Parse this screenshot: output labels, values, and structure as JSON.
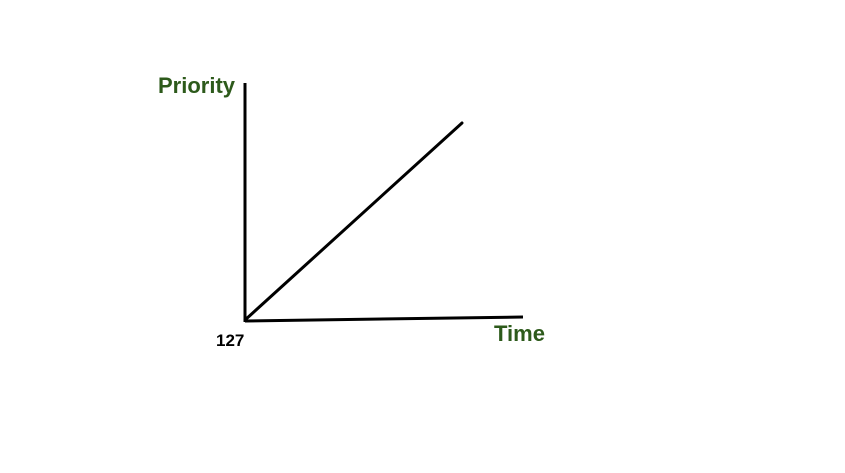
{
  "chart_data": {
    "type": "line",
    "xlabel": "Time",
    "ylabel": "Priority",
    "y_tick_labels": [
      "127"
    ],
    "series": [
      {
        "points": [
          [
            0,
            0
          ],
          [
            1,
            1
          ]
        ]
      }
    ],
    "grid": false,
    "colors": {
      "axis_label": "#2d5a1b",
      "line": "#000000",
      "tick_label": "#000000"
    }
  }
}
